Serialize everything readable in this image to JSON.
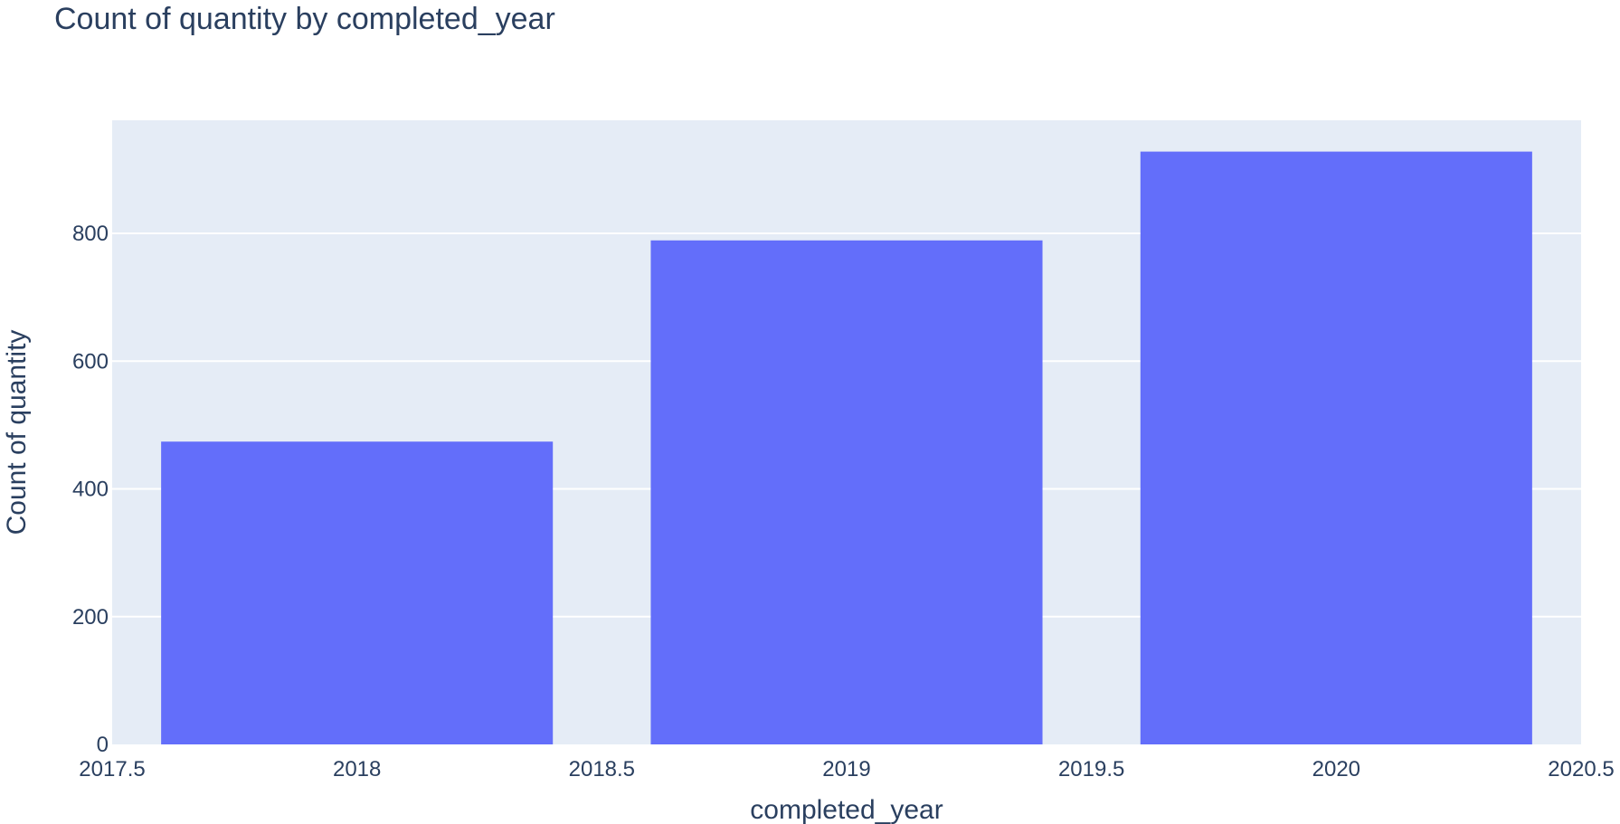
{
  "chart_data": {
    "type": "bar",
    "title": "Count of quantity by completed_year",
    "xlabel": "completed_year",
    "ylabel": "Count of quantity",
    "x": [
      2018,
      2019,
      2020
    ],
    "values": [
      474,
      789,
      928
    ],
    "bar_width": 0.8,
    "xlim": [
      2017.5,
      2020.5
    ],
    "ylim": [
      0,
      977
    ],
    "xticks": [
      2017.5,
      2018,
      2018.5,
      2019,
      2019.5,
      2020,
      2020.5
    ],
    "xtick_labels": [
      "2017.5",
      "2018",
      "2018.5",
      "2019",
      "2019.5",
      "2020",
      "2020.5"
    ],
    "yticks": [
      0,
      200,
      400,
      600,
      800
    ],
    "ytick_labels": [
      "0",
      "200",
      "400",
      "600",
      "800"
    ],
    "grid": "horizontal",
    "legend": "none",
    "colors": {
      "bar": "#636efa",
      "plot_bg": "#e5ecf6",
      "grid": "#ffffff",
      "text": "#2a3f5f"
    }
  }
}
